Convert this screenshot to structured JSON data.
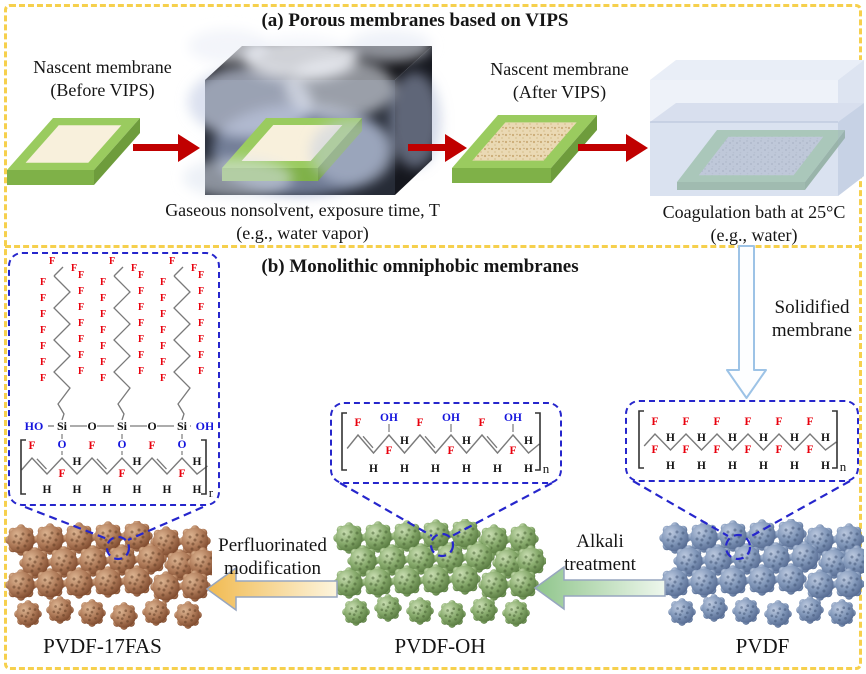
{
  "panel_a": {
    "title": "(a) Porous membranes based on VIPS",
    "before_label_line1": "Nascent membrane",
    "before_label_line2": "(Before VIPS)",
    "chamber_caption_line1": "Gaseous nonsolvent, exposure time, T",
    "chamber_caption_line2": "(e.g., water vapor)",
    "after_label_line1": "Nascent membrane",
    "after_label_line2": "(After VIPS)",
    "bath_caption_line1": "Coagulation bath at 25°C",
    "bath_caption_line2": "(e.g., water)"
  },
  "panel_b": {
    "title": "(b) Monolithic omniphobic membranes",
    "solidified_line1": "Solidified",
    "solidified_line2": "membrane",
    "perfluorinated_line1": "Perfluorinated",
    "perfluorinated_line2": "modification",
    "alkali_line1": "Alkali",
    "alkali_line2": "treatment",
    "membrane_labels": {
      "pvdf17fas": "PVDF-17FAS",
      "pvdfoh": "PVDF-OH",
      "pvdf": "PVDF"
    }
  },
  "chemistry": {
    "atom_labels": {
      "fluorine": "F",
      "hydrogen": "H",
      "hydroxyl": "OH",
      "hydroxyl_rev": "HO",
      "silicon": "Si",
      "oxygen": "O",
      "repeat_subscript": "n"
    },
    "atom_colors": {
      "fluorine": "#e8000d",
      "hydroxyl": "#1515dd",
      "default": "#141414",
      "bond": "#7a7a7a"
    },
    "silane_row": [
      {
        "label": "HO",
        "color": "hydroxyl"
      },
      {
        "label": "Si",
        "color": "default"
      },
      {
        "label": "O",
        "color": "default"
      },
      {
        "label": "Si",
        "color": "default"
      },
      {
        "label": "O",
        "color": "default"
      },
      {
        "label": "Si",
        "color": "default"
      },
      {
        "label": "OH",
        "color": "hydroxyl"
      }
    ],
    "fluoro_chains": {
      "chains": 3,
      "label": "F",
      "fluorines_per_chain": 17
    },
    "pvdf_backbone": [
      {
        "t": "F",
        "tcol": "red",
        "b": "F",
        "bcol": "red"
      },
      {
        "t": "H",
        "b": "H"
      },
      {
        "t": "F",
        "tcol": "red",
        "b": "F",
        "bcol": "red"
      },
      {
        "t": "H",
        "b": "H"
      },
      {
        "t": "F",
        "tcol": "red",
        "b": "F",
        "bcol": "red"
      },
      {
        "t": "H",
        "b": "H"
      },
      {
        "t": "F",
        "tcol": "red",
        "b": "F",
        "bcol": "red"
      },
      {
        "t": "H",
        "b": "H"
      },
      {
        "t": "F",
        "tcol": "red",
        "b": "F",
        "bcol": "red"
      },
      {
        "t": "H",
        "b": "H"
      },
      {
        "t": "F",
        "tcol": "red",
        "b": "F",
        "bcol": "red"
      },
      {
        "t": "H",
        "b": "H"
      }
    ],
    "pvdfoh_backbone": [
      {
        "t": "F",
        "tcol": "red",
        "dbl": true
      },
      {
        "b": "H"
      },
      {
        "t": "OH",
        "tcol": "blue",
        "b": "F",
        "bcol": "red"
      },
      {
        "t": "H",
        "b": "H"
      },
      {
        "t": "F",
        "tcol": "red",
        "dbl": true
      },
      {
        "b": "H"
      },
      {
        "t": "OH",
        "tcol": "blue",
        "b": "F",
        "bcol": "red"
      },
      {
        "t": "H",
        "b": "H"
      },
      {
        "t": "F",
        "tcol": "red",
        "dbl": true
      },
      {
        "b": "H"
      },
      {
        "t": "OH",
        "tcol": "blue",
        "b": "F",
        "bcol": "red"
      },
      {
        "t": "H",
        "b": "H"
      }
    ],
    "pvdf17fas_backbone": [
      {
        "t": "F",
        "tcol": "red",
        "dbl": true
      },
      {
        "b": "H"
      },
      {
        "t": "O",
        "tcol": "blue",
        "b": "F",
        "bcol": "red",
        "silink": true
      },
      {
        "t": "H",
        "b": "H"
      },
      {
        "t": "F",
        "tcol": "red",
        "dbl": true
      },
      {
        "b": "H"
      },
      {
        "t": "O",
        "tcol": "blue",
        "b": "F",
        "bcol": "red",
        "silink": true
      },
      {
        "t": "H",
        "b": "H"
      },
      {
        "t": "F",
        "tcol": "red",
        "dbl": true
      },
      {
        "b": "H"
      },
      {
        "t": "O",
        "tcol": "blue",
        "b": "F",
        "bcol": "red",
        "silink": true
      },
      {
        "t": "H",
        "b": "H"
      }
    ]
  },
  "colors": {
    "border_gold": "#f6d04d",
    "dashed_blue": "#2626cc",
    "arrow_red": "#c00000",
    "membrane_green_top": "#9acb5f",
    "membrane_green_front": "#7fb148",
    "membrane_green_side": "#6e9c3c",
    "membrane_inner_cream": "#f8f0dc",
    "after_vips_tan": "#ead9b4",
    "bath_water_blue": "#c6d2e7",
    "solidified_arrow_stroke": "#9dc3e6",
    "perfluorinated_arrow_fill": "#f1ba50",
    "alkali_arrow_fill": "#8fc58b",
    "pvdf17fas_sphere": "#b07c5a",
    "pvdfoh_sphere": "#87aa6c",
    "pvdf_sphere": "#8197b9"
  }
}
